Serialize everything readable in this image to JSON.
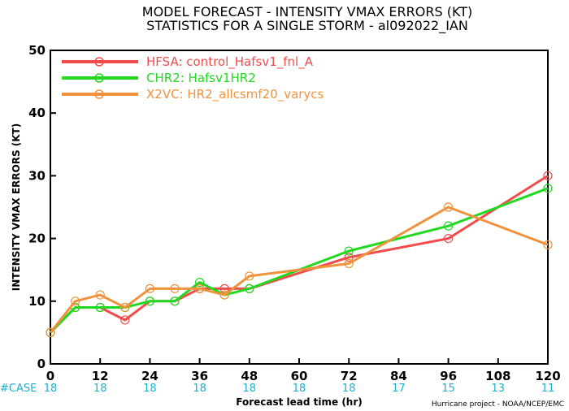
{
  "title_line1": "MODEL FORECAST - INTENSITY VMAX ERRORS (KT)",
  "title_line2": "STATISTICS FOR A SINGLE STORM - al092022_IAN",
  "credit": "Hurricane project - NOAA/NCEP/EMC",
  "case_label": "#CASE",
  "case_color": "#1ab0c8",
  "chart_data": {
    "type": "line",
    "xlabel": "Forecast lead time (hr)",
    "ylabel": "INTENSITY VMAX ERRORS (KT)",
    "xlim": [
      0,
      120
    ],
    "ylim": [
      0,
      50
    ],
    "x_ticks": [
      0,
      12,
      24,
      36,
      48,
      60,
      72,
      84,
      96,
      108,
      120
    ],
    "y_ticks": [
      0,
      10,
      20,
      30,
      40,
      50
    ],
    "grid": false,
    "legend_position": "top-left",
    "cases": [
      18,
      18,
      18,
      18,
      18,
      18,
      18,
      17,
      15,
      13,
      11
    ],
    "series": [
      {
        "name": "HFSA: control_Hafsv1_fnl_A",
        "color": "#f04c4c",
        "x": [
          0,
          6,
          12,
          18,
          24,
          30,
          36,
          42,
          48,
          72,
          96,
          120
        ],
        "values": [
          5,
          9,
          9,
          7,
          10,
          10,
          12,
          12,
          12,
          17,
          20,
          30
        ]
      },
      {
        "name": "CHR2: Hafsv1HR2",
        "color": "#22d822",
        "x": [
          0,
          6,
          12,
          18,
          24,
          30,
          36,
          42,
          48,
          72,
          96,
          120
        ],
        "values": [
          5,
          9,
          9,
          9,
          10,
          10,
          13,
          11,
          12,
          18,
          22,
          28
        ]
      },
      {
        "name": "X2VC: HR2_allcsmf20_varycs",
        "color": "#f0923c",
        "x": [
          0,
          6,
          12,
          18,
          24,
          30,
          36,
          42,
          48,
          72,
          96,
          120
        ],
        "values": [
          5,
          10,
          11,
          9,
          12,
          12,
          12,
          11,
          14,
          16,
          25,
          19
        ]
      }
    ]
  }
}
